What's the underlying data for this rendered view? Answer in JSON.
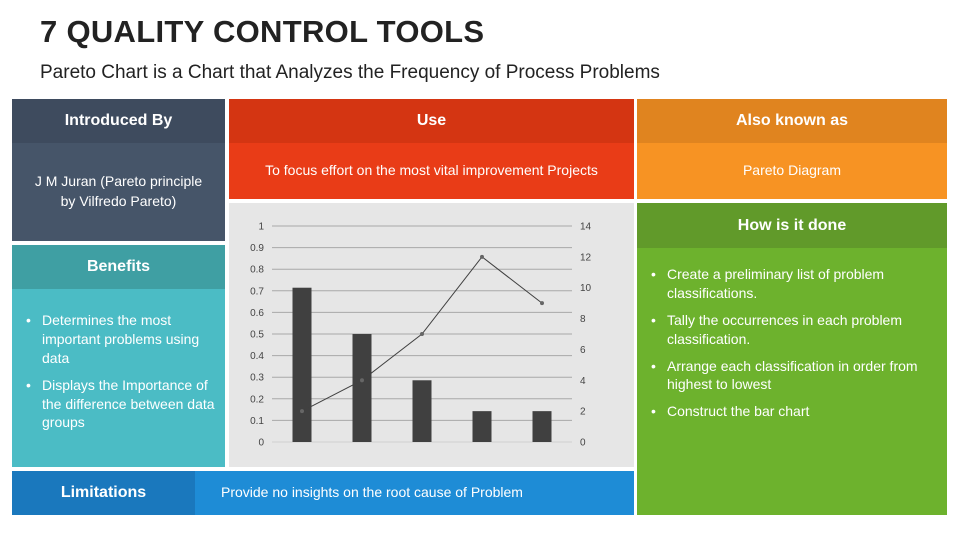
{
  "title": "7 QUALITY CONTROL TOOLS",
  "subtitle": "Pareto Chart is a Chart that Analyzes the Frequency of Process Problems",
  "introduced": {
    "header": "Introduced By",
    "body": "J M Juran (Pareto principle by Vilfredo Pareto)"
  },
  "use": {
    "header": "Use",
    "body": "To focus effort on the most vital improvement Projects"
  },
  "aka": {
    "header": "Also known as",
    "body": "Pareto Diagram"
  },
  "benefits": {
    "header": "Benefits",
    "items": [
      "Determines the most important problems using data",
      "Displays the Importance of the difference between data groups"
    ]
  },
  "how": {
    "header": "How is it done",
    "items": [
      "Create a preliminary list of problem classifications.",
      "Tally the occurrences in each problem classification.",
      "Arrange each classification in order from highest to lowest",
      "Construct the bar chart"
    ]
  },
  "limitations": {
    "label": "Limitations",
    "body": "Provide no insights on the root cause of Problem"
  },
  "colors": {
    "introduced_header": "#3e4b5e",
    "introduced_body": "#465569",
    "use_header": "#d43512",
    "use_body": "#e93c17",
    "aka_header": "#e0841f",
    "aka_body": "#f79323",
    "benefits_header": "#3f9fa3",
    "benefits_body": "#4bbcc5",
    "how_header": "#619a2a",
    "how_body": "#6db22d",
    "limitations_label": "#1a78bd",
    "limitations_body": "#1e8cd6"
  },
  "chart_data": {
    "type": "bar",
    "categories": [
      "",
      "",
      "",
      "",
      ""
    ],
    "series": [
      {
        "type": "bar",
        "axis": "right",
        "values": [
          10,
          7,
          4,
          2,
          2
        ]
      },
      {
        "type": "line",
        "axis": "right",
        "values": [
          2,
          4,
          7,
          12,
          9
        ]
      }
    ],
    "left_axis": {
      "ylim": [
        0,
        1
      ],
      "ticks": [
        "0",
        "0.1",
        "0.2",
        "0.3",
        "0.4",
        "0.5",
        "0.6",
        "0.7",
        "0.8",
        "0.9",
        "1"
      ]
    },
    "right_axis": {
      "ylim": [
        0,
        14
      ],
      "ticks": [
        "0",
        "2",
        "4",
        "6",
        "8",
        "10",
        "12",
        "14"
      ]
    },
    "grid": true,
    "bar_color": "#404040",
    "line_color": "#404040"
  }
}
